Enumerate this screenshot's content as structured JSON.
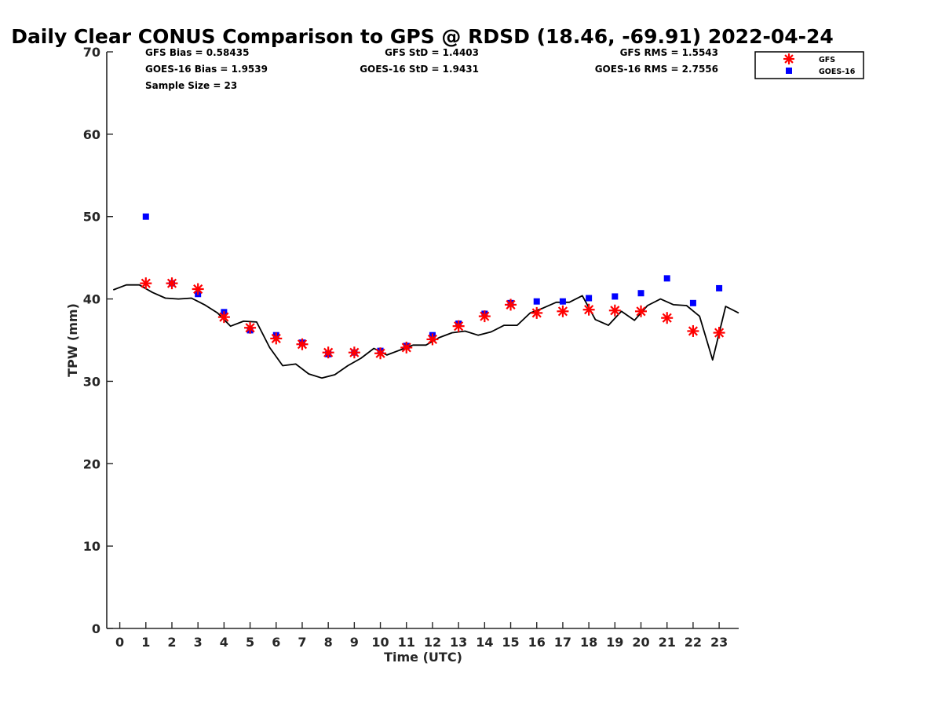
{
  "chart_data": {
    "type": "scatter",
    "title": "Daily Clear CONUS Comparison to GPS @ RDSD (18.46, -69.91) 2022-04-24",
    "xlabel": "Time (UTC)",
    "ylabel": "TPW (mm)",
    "xlim": [
      -0.5,
      23.75
    ],
    "ylim": [
      0,
      70
    ],
    "xticks": [
      0,
      1,
      2,
      3,
      4,
      5,
      6,
      7,
      8,
      9,
      10,
      11,
      12,
      13,
      14,
      15,
      16,
      17,
      18,
      19,
      20,
      21,
      22,
      23
    ],
    "yticks": [
      0,
      10,
      20,
      30,
      40,
      50,
      60,
      70
    ],
    "grid": false,
    "legend_position": "top-right",
    "stats": {
      "gfs_bias": "GFS Bias = 0.58435",
      "goes_bias": "GOES-16 Bias = 1.9539",
      "sample_size": "Sample Size = 23",
      "gfs_std": "GFS StD = 1.4403",
      "goes_std": "GOES-16 StD = 1.9431",
      "gfs_rms": "GFS RMS = 1.5543",
      "goes_rms": "GOES-16 RMS = 2.7556"
    },
    "series": [
      {
        "name": "GFS",
        "marker": "asterisk",
        "color": "#ff0000",
        "x": [
          1,
          2,
          3,
          4,
          5,
          6,
          7,
          8,
          9,
          10,
          11,
          12,
          13,
          14,
          15,
          16,
          17,
          18,
          19,
          20,
          21,
          22,
          23
        ],
        "y": [
          41.9,
          41.9,
          41.2,
          37.8,
          36.5,
          35.2,
          34.5,
          33.5,
          33.5,
          33.4,
          34.1,
          35.1,
          36.7,
          37.9,
          39.3,
          38.3,
          38.5,
          38.7,
          38.6,
          38.5,
          37.7,
          36.1,
          35.9
        ]
      },
      {
        "name": "GOES-16",
        "marker": "square",
        "color": "#0000ff",
        "x": [
          1,
          2,
          3,
          4,
          5,
          6,
          7,
          8,
          9,
          10,
          11,
          12,
          13,
          14,
          15,
          16,
          17,
          18,
          19,
          20,
          21,
          22,
          23
        ],
        "y": [
          50.0,
          41.9,
          40.6,
          38.4,
          36.2,
          35.6,
          34.7,
          33.3,
          33.5,
          33.7,
          34.3,
          35.6,
          37.0,
          38.2,
          39.5,
          39.7,
          39.7,
          40.1,
          40.3,
          40.7,
          42.5,
          39.5,
          41.3
        ]
      },
      {
        "name": "GPS",
        "marker": "line",
        "color": "#000000",
        "x": [
          -0.25,
          0.25,
          0.75,
          1.25,
          1.75,
          2.25,
          2.75,
          3.25,
          3.75,
          4.25,
          4.75,
          5.25,
          5.75,
          6.25,
          6.75,
          7.25,
          7.75,
          8.25,
          8.75,
          9.25,
          9.75,
          10.25,
          10.75,
          11.25,
          11.75,
          12.25,
          12.75,
          13.25,
          13.75,
          14.25,
          14.75,
          15.25,
          15.75,
          16.25,
          16.75,
          17.25,
          17.75,
          18.25,
          18.75,
          19.25,
          19.75,
          20.25,
          20.75,
          21.25,
          21.75,
          22.25,
          22.75,
          23.25,
          23.75
        ],
        "y": [
          41.1,
          41.7,
          41.7,
          40.8,
          40.1,
          40.0,
          40.1,
          39.3,
          38.3,
          36.7,
          37.3,
          37.2,
          34.1,
          31.9,
          32.1,
          30.9,
          30.4,
          30.8,
          31.9,
          32.8,
          34.0,
          33.2,
          33.8,
          34.4,
          34.4,
          35.3,
          35.9,
          36.1,
          35.6,
          36.0,
          36.8,
          36.8,
          38.3,
          38.9,
          39.6,
          39.6,
          40.4,
          37.5,
          36.8,
          38.5,
          37.4,
          39.2,
          40.0,
          39.3,
          39.2,
          37.9,
          32.6,
          39.1,
          38.3
        ]
      }
    ]
  }
}
